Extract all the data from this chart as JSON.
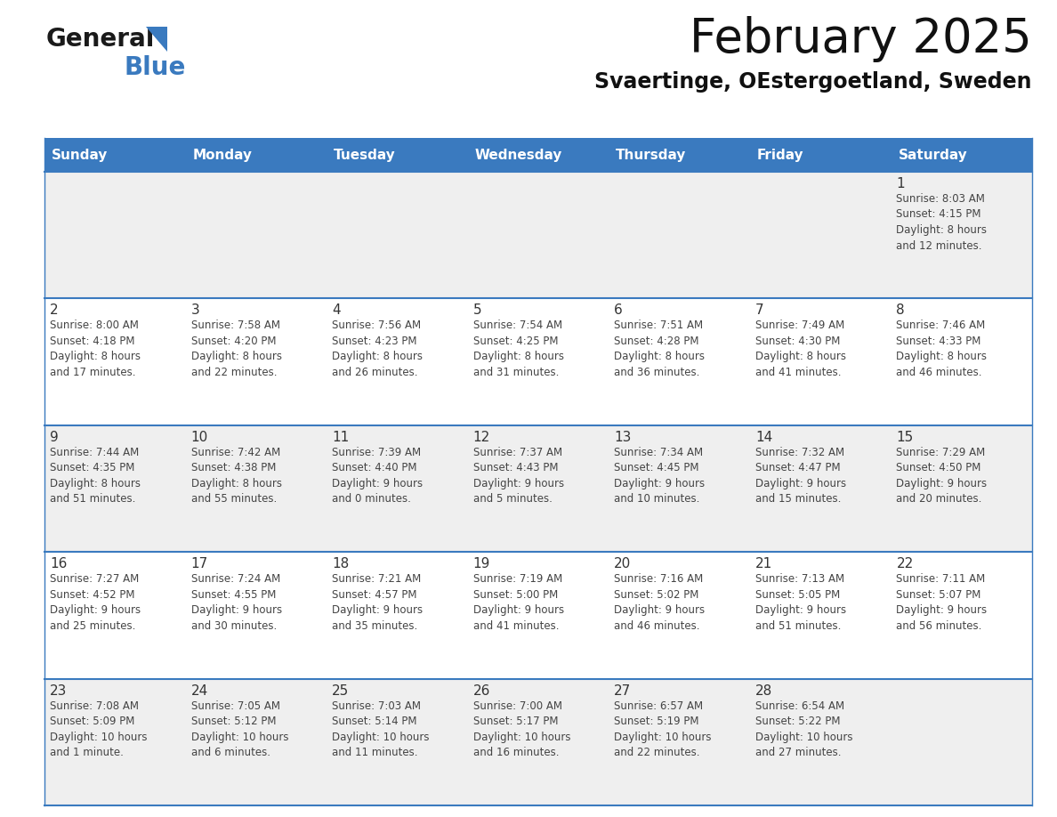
{
  "title": "February 2025",
  "subtitle": "Svaertinge, OEstergoetland, Sweden",
  "header_bg": "#3a7abf",
  "header_text": "#ffffff",
  "day_headers": [
    "Sunday",
    "Monday",
    "Tuesday",
    "Wednesday",
    "Thursday",
    "Friday",
    "Saturday"
  ],
  "row_bg_odd": "#efefef",
  "row_bg_even": "#ffffff",
  "cell_border": "#3a7abf",
  "date_color": "#333333",
  "info_color": "#444444",
  "logo_general_color": "#1a1a1a",
  "logo_blue_color": "#3a7abf",
  "calendar_data": [
    [
      {
        "day": "",
        "info": ""
      },
      {
        "day": "",
        "info": ""
      },
      {
        "day": "",
        "info": ""
      },
      {
        "day": "",
        "info": ""
      },
      {
        "day": "",
        "info": ""
      },
      {
        "day": "",
        "info": ""
      },
      {
        "day": "1",
        "info": "Sunrise: 8:03 AM\nSunset: 4:15 PM\nDaylight: 8 hours\nand 12 minutes."
      }
    ],
    [
      {
        "day": "2",
        "info": "Sunrise: 8:00 AM\nSunset: 4:18 PM\nDaylight: 8 hours\nand 17 minutes."
      },
      {
        "day": "3",
        "info": "Sunrise: 7:58 AM\nSunset: 4:20 PM\nDaylight: 8 hours\nand 22 minutes."
      },
      {
        "day": "4",
        "info": "Sunrise: 7:56 AM\nSunset: 4:23 PM\nDaylight: 8 hours\nand 26 minutes."
      },
      {
        "day": "5",
        "info": "Sunrise: 7:54 AM\nSunset: 4:25 PM\nDaylight: 8 hours\nand 31 minutes."
      },
      {
        "day": "6",
        "info": "Sunrise: 7:51 AM\nSunset: 4:28 PM\nDaylight: 8 hours\nand 36 minutes."
      },
      {
        "day": "7",
        "info": "Sunrise: 7:49 AM\nSunset: 4:30 PM\nDaylight: 8 hours\nand 41 minutes."
      },
      {
        "day": "8",
        "info": "Sunrise: 7:46 AM\nSunset: 4:33 PM\nDaylight: 8 hours\nand 46 minutes."
      }
    ],
    [
      {
        "day": "9",
        "info": "Sunrise: 7:44 AM\nSunset: 4:35 PM\nDaylight: 8 hours\nand 51 minutes."
      },
      {
        "day": "10",
        "info": "Sunrise: 7:42 AM\nSunset: 4:38 PM\nDaylight: 8 hours\nand 55 minutes."
      },
      {
        "day": "11",
        "info": "Sunrise: 7:39 AM\nSunset: 4:40 PM\nDaylight: 9 hours\nand 0 minutes."
      },
      {
        "day": "12",
        "info": "Sunrise: 7:37 AM\nSunset: 4:43 PM\nDaylight: 9 hours\nand 5 minutes."
      },
      {
        "day": "13",
        "info": "Sunrise: 7:34 AM\nSunset: 4:45 PM\nDaylight: 9 hours\nand 10 minutes."
      },
      {
        "day": "14",
        "info": "Sunrise: 7:32 AM\nSunset: 4:47 PM\nDaylight: 9 hours\nand 15 minutes."
      },
      {
        "day": "15",
        "info": "Sunrise: 7:29 AM\nSunset: 4:50 PM\nDaylight: 9 hours\nand 20 minutes."
      }
    ],
    [
      {
        "day": "16",
        "info": "Sunrise: 7:27 AM\nSunset: 4:52 PM\nDaylight: 9 hours\nand 25 minutes."
      },
      {
        "day": "17",
        "info": "Sunrise: 7:24 AM\nSunset: 4:55 PM\nDaylight: 9 hours\nand 30 minutes."
      },
      {
        "day": "18",
        "info": "Sunrise: 7:21 AM\nSunset: 4:57 PM\nDaylight: 9 hours\nand 35 minutes."
      },
      {
        "day": "19",
        "info": "Sunrise: 7:19 AM\nSunset: 5:00 PM\nDaylight: 9 hours\nand 41 minutes."
      },
      {
        "day": "20",
        "info": "Sunrise: 7:16 AM\nSunset: 5:02 PM\nDaylight: 9 hours\nand 46 minutes."
      },
      {
        "day": "21",
        "info": "Sunrise: 7:13 AM\nSunset: 5:05 PM\nDaylight: 9 hours\nand 51 minutes."
      },
      {
        "day": "22",
        "info": "Sunrise: 7:11 AM\nSunset: 5:07 PM\nDaylight: 9 hours\nand 56 minutes."
      }
    ],
    [
      {
        "day": "23",
        "info": "Sunrise: 7:08 AM\nSunset: 5:09 PM\nDaylight: 10 hours\nand 1 minute."
      },
      {
        "day": "24",
        "info": "Sunrise: 7:05 AM\nSunset: 5:12 PM\nDaylight: 10 hours\nand 6 minutes."
      },
      {
        "day": "25",
        "info": "Sunrise: 7:03 AM\nSunset: 5:14 PM\nDaylight: 10 hours\nand 11 minutes."
      },
      {
        "day": "26",
        "info": "Sunrise: 7:00 AM\nSunset: 5:17 PM\nDaylight: 10 hours\nand 16 minutes."
      },
      {
        "day": "27",
        "info": "Sunrise: 6:57 AM\nSunset: 5:19 PM\nDaylight: 10 hours\nand 22 minutes."
      },
      {
        "day": "28",
        "info": "Sunrise: 6:54 AM\nSunset: 5:22 PM\nDaylight: 10 hours\nand 27 minutes."
      },
      {
        "day": "",
        "info": ""
      }
    ]
  ]
}
